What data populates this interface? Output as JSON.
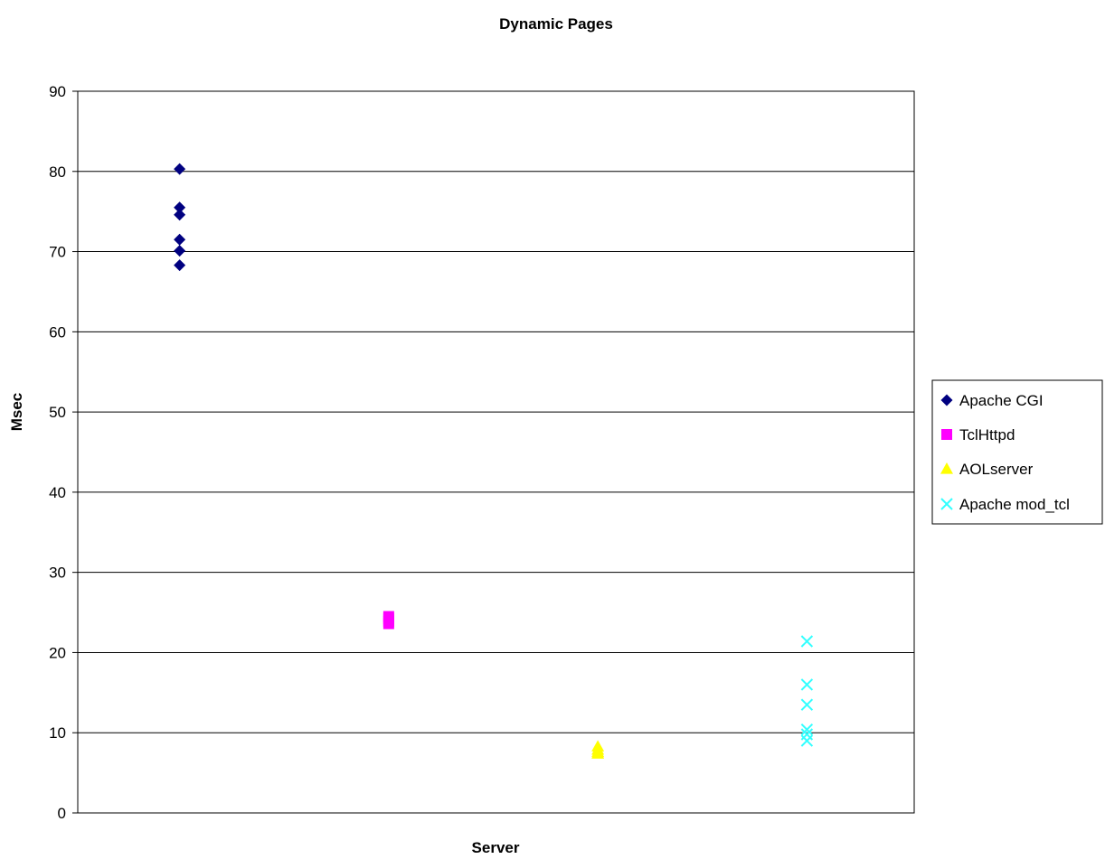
{
  "chart_data": {
    "type": "scatter",
    "title": "Dynamic Pages",
    "xlabel": "Server",
    "ylabel": "Msec",
    "ylim": [
      0,
      90
    ],
    "yticks": [
      "0",
      "10",
      "20",
      "30",
      "40",
      "50",
      "60",
      "70",
      "80",
      "90"
    ],
    "grid": "horizontal",
    "legend_position": "right",
    "series": [
      {
        "name": "Apache CGI",
        "marker": "diamond",
        "color": "#000080",
        "x": 1,
        "values": [
          80.3,
          75.5,
          74.6,
          71.5,
          70.1,
          68.3
        ]
      },
      {
        "name": "TclHttpd",
        "marker": "square",
        "color": "#ff00ff",
        "x": 2,
        "values": [
          24.5,
          24.2,
          23.9,
          23.6
        ]
      },
      {
        "name": "AOLserver",
        "marker": "triangle",
        "color": "#ffff00",
        "x": 3,
        "values": [
          8.3,
          7.9,
          7.6,
          7.4
        ]
      },
      {
        "name": "Apache mod_tcl",
        "marker": "x",
        "color": "#33ffff",
        "x": 4,
        "values": [
          21.4,
          16.0,
          13.5,
          10.4,
          9.8,
          9.0
        ]
      }
    ]
  }
}
